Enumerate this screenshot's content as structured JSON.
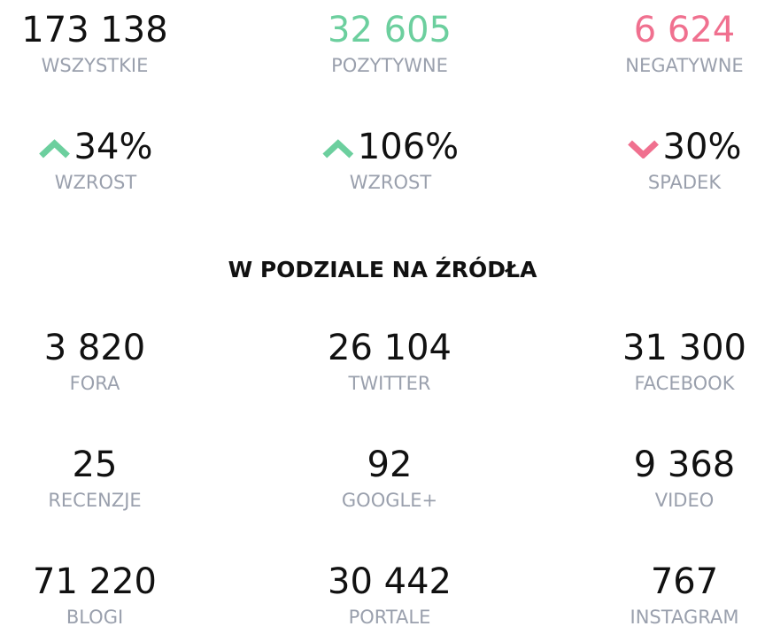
{
  "summary": [
    {
      "value": "173 138",
      "label": "WSZYSTKIE"
    },
    {
      "value": "32 605",
      "label": "POZYTYWNE"
    },
    {
      "value": "6 624",
      "label": "NEGATYWNE"
    }
  ],
  "trends": [
    {
      "value": "34%",
      "label": "WZROST"
    },
    {
      "value": "106%",
      "label": "WZROST"
    },
    {
      "value": "30%",
      "label": "SPADEK"
    }
  ],
  "heading": "W PODZIALE NA ŹRÓDŁA",
  "sources": [
    {
      "value": "3 820",
      "label": "FORA"
    },
    {
      "value": "26 104",
      "label": "TWITTER"
    },
    {
      "value": "31 300",
      "label": "FACEBOOK"
    },
    {
      "value": "25",
      "label": "RECENZJE"
    },
    {
      "value": "92",
      "label": "GOOGLE+"
    },
    {
      "value": "9 368",
      "label": "VIDEO"
    },
    {
      "value": "71 220",
      "label": "BLOGI"
    },
    {
      "value": "30 442",
      "label": "PORTALE"
    },
    {
      "value": "767",
      "label": "INSTAGRAM"
    }
  ]
}
